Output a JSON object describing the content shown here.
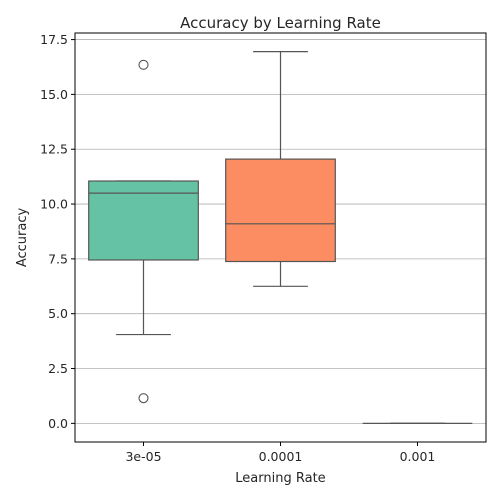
{
  "chart_data": {
    "type": "box",
    "title": "Accuracy by Learning Rate",
    "xlabel": "Learning Rate",
    "ylabel": "Accuracy",
    "ylim": [
      -0.85,
      17.8
    ],
    "yticks": [
      0.0,
      2.5,
      5.0,
      7.5,
      10.0,
      12.5,
      15.0,
      17.5
    ],
    "ytick_labels": [
      "0.0",
      "2.5",
      "5.0",
      "7.5",
      "10.0",
      "12.5",
      "15.0",
      "17.5"
    ],
    "grid": "horizontal",
    "categories": [
      "3e-05",
      "0.0001",
      "0.001"
    ],
    "boxes": [
      {
        "category": "3e-05",
        "whisker_low": 4.05,
        "q1": 7.45,
        "median": 10.5,
        "q3": 11.05,
        "whisker_high": 11.05,
        "outliers": [
          16.35,
          1.15
        ],
        "color": "#66c2a5"
      },
      {
        "category": "0.0001",
        "whisker_low": 6.25,
        "q1": 7.38,
        "median": 9.1,
        "q3": 12.05,
        "whisker_high": 16.95,
        "outliers": [],
        "color": "#fc8d62"
      },
      {
        "category": "0.001",
        "whisker_low": 0.0,
        "q1": 0.0,
        "median": 0.0,
        "q3": 0.0,
        "whisker_high": 0.0,
        "outliers": [],
        "color": "#8da0cb"
      }
    ]
  },
  "colors": {
    "edge": "#555555",
    "grid": "#b0b0b0",
    "axis": "#000000"
  }
}
